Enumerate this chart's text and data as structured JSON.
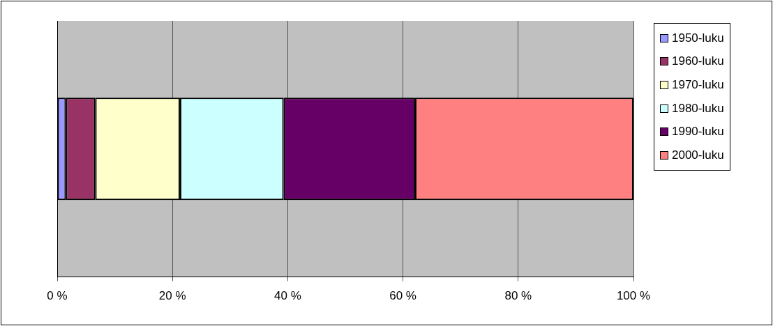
{
  "chart_data": {
    "type": "bar",
    "orientation": "horizontal",
    "stacked": true,
    "categories": [
      null
    ],
    "series": [
      {
        "name": "1950-luku",
        "color": "#9999ff",
        "values": [
          1.5
        ]
      },
      {
        "name": "1960-luku",
        "color": "#993366",
        "values": [
          5.1
        ]
      },
      {
        "name": "1970-luku",
        "color": "#ffffcc",
        "values": [
          14.7
        ]
      },
      {
        "name": "1980-luku",
        "color": "#ccffff",
        "values": [
          18.0
        ]
      },
      {
        "name": "1990-luku",
        "color": "#660066",
        "values": [
          22.8
        ]
      },
      {
        "name": "2000-luku",
        "color": "#ff8080",
        "values": [
          37.9
        ]
      }
    ],
    "xlim": [
      0,
      100
    ],
    "xticks": [
      {
        "value": 0,
        "label": "0 %"
      },
      {
        "value": 20,
        "label": "20 %"
      },
      {
        "value": 40,
        "label": "40 %"
      },
      {
        "value": 60,
        "label": "60 %"
      },
      {
        "value": 80,
        "label": "80 %"
      },
      {
        "value": 100,
        "label": "100 %"
      }
    ],
    "grid": "x",
    "legend": "right",
    "tick_labels": "x"
  }
}
